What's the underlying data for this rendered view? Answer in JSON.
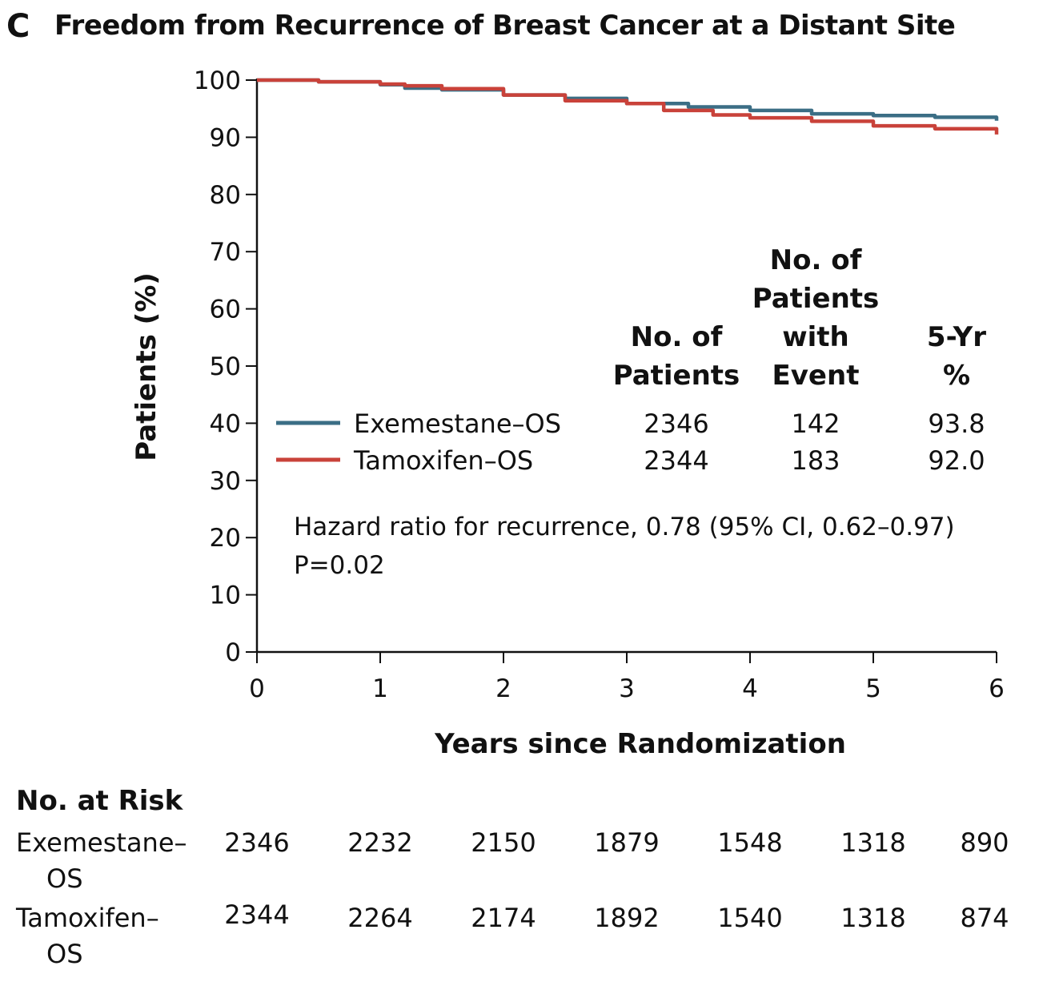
{
  "panel_letter": "C",
  "title": "Freedom from Recurrence of Breast Cancer at a Distant Site",
  "chart_data": {
    "type": "line",
    "title": "Freedom from Recurrence of Breast Cancer at a Distant Site",
    "xlabel": "Years since Randomization",
    "ylabel": "Patients (%)",
    "xlim": [
      0,
      6
    ],
    "ylim": [
      0,
      100
    ],
    "x_ticks": [
      "0",
      "1",
      "2",
      "3",
      "4",
      "5",
      "6"
    ],
    "y_ticks": [
      "0",
      "10",
      "20",
      "30",
      "40",
      "50",
      "60",
      "70",
      "80",
      "90",
      "100"
    ],
    "grid": false,
    "series": [
      {
        "name": "Exemestane–OS",
        "color": "#3b6e85",
        "x": [
          0,
          0.5,
          1.0,
          1.2,
          1.5,
          2.0,
          2.5,
          3.0,
          3.5,
          4.0,
          4.5,
          5.0,
          5.5,
          6.0
        ],
        "y": [
          100,
          99.7,
          99.2,
          98.6,
          98.3,
          97.4,
          96.8,
          95.9,
          95.3,
          94.7,
          94.1,
          93.8,
          93.5,
          92.9
        ]
      },
      {
        "name": "Tamoxifen–OS",
        "color": "#c9423a",
        "x": [
          0,
          0.5,
          1.0,
          1.2,
          1.5,
          2.0,
          2.5,
          3.0,
          3.3,
          3.7,
          4.0,
          4.5,
          5.0,
          5.5,
          6.0
        ],
        "y": [
          100,
          99.7,
          99.3,
          99.0,
          98.5,
          97.4,
          96.4,
          95.9,
          94.7,
          93.9,
          93.4,
          92.8,
          92.0,
          91.5,
          90.5
        ]
      }
    ],
    "legend_table": {
      "headers": [
        "No. of Patients",
        "No. of Patients with Event",
        "5-Yr %"
      ],
      "header_lines": [
        [
          "No. of",
          "Patients"
        ],
        [
          "No. of",
          "Patients",
          "with",
          "Event"
        ],
        [
          "5-Yr",
          "%"
        ]
      ],
      "rows": [
        {
          "label": "Exemestane–OS",
          "values": [
            "2346",
            "142",
            "93.8"
          ]
        },
        {
          "label": "Tamoxifen–OS",
          "values": [
            "2344",
            "183",
            "92.0"
          ]
        }
      ]
    },
    "annotation_line1": "Hazard ratio for recurrence, 0.78 (95% CI, 0.62–0.97)",
    "annotation_line2": "P=0.02"
  },
  "at_risk": {
    "title": "No. at Risk",
    "rows": [
      {
        "line1": "Exemestane–",
        "line2": "OS",
        "values": [
          "2346",
          "2232",
          "2150",
          "1879",
          "1548",
          "1318",
          "890"
        ]
      },
      {
        "line1": "Tamoxifen–",
        "line2": "OS",
        "values": [
          "2344",
          "2264",
          "2174",
          "1892",
          "1540",
          "1318",
          "874"
        ]
      }
    ]
  }
}
